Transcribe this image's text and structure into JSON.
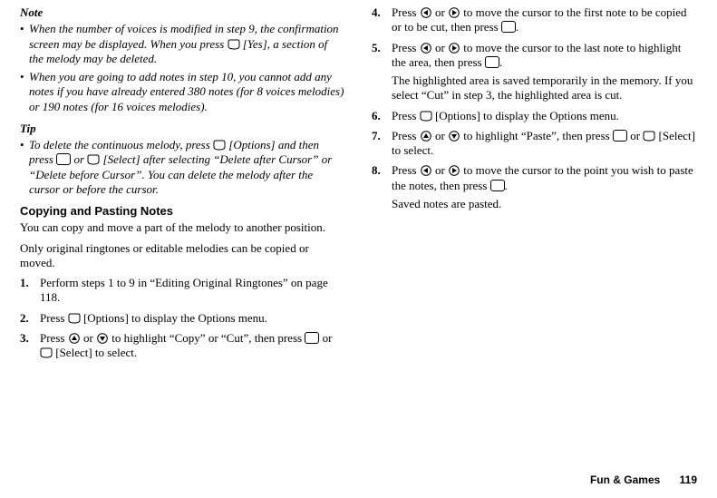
{
  "left": {
    "note_head": "Note",
    "notes": [
      "When the number of voices is modified in step 9, the confirmation screen may be displayed. When you press {SOFT} [Yes], a section of the melody may be deleted.",
      "When you are going to add notes in step 10, you cannot add any notes if you have already entered 380 notes (for 8 voices melodies) or 190 notes (for 16 voices melodies)."
    ],
    "tip_head": "Tip",
    "tip": "To delete the continuous melody, press {SOFT} [Options] and then press {CENTER} or {SOFT} [Select] after selecting \"Delete after Cursor\" or \"Delete before Cursor\". You can delete the melody after the cursor or before the cursor.",
    "subhead": "Copying and Pasting Notes",
    "para1": "You can copy and move a part of the melody to another position.",
    "para2": "Only original ringtones or editable melodies can be copied or moved.",
    "steps": [
      {
        "n": "1.",
        "t": "Perform steps 1 to 9 in \"Editing Original Ringtones\" on page 118."
      },
      {
        "n": "2.",
        "t": "Press {SOFT} [Options] to display the Options menu."
      },
      {
        "n": "3.",
        "t": "Press {UP} or {DOWN} to highlight \"Copy\" or \"Cut\", then press {CENTER} or {SOFT} [Select] to select."
      }
    ]
  },
  "right": {
    "steps": [
      {
        "n": "4.",
        "t": "Press {LEFT} or {RIGHT} to move the cursor to the first note to be copied or to be cut, then press {CENTER}."
      },
      {
        "n": "5.",
        "t": "Press {LEFT} or {RIGHT} to move the cursor to the last note to highlight the area, then press {CENTER}."
      },
      {
        "n": "",
        "t": "The highlighted area is saved temporarily in the memory. If you select \"Cut\" in step 3, the highlighted area is cut.",
        "cont": true
      },
      {
        "n": "6.",
        "t": "Press {SOFT} [Options] to display the Options menu."
      },
      {
        "n": "7.",
        "t": "Press {UP} or {DOWN} to highlight \"Paste\", then press {CENTER} or {SOFT} [Select] to select."
      },
      {
        "n": "8.",
        "t": "Press {LEFT} or {RIGHT} to move the cursor to the point you wish to paste the notes, then press {CENTER}."
      },
      {
        "n": "",
        "t": "Saved notes are pasted.",
        "cont": true
      }
    ]
  },
  "footer": {
    "section": "Fun & Games",
    "page": "119"
  }
}
